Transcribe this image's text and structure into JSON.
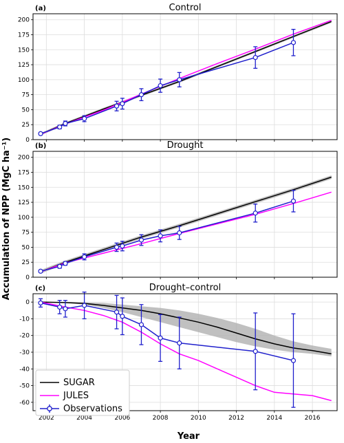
{
  "axes": {
    "ylabel": "Accumulation of NPP (MgC ha⁻¹)",
    "xlabel": "Year"
  },
  "legend": {
    "entries": [
      "SUGAR",
      "JULES",
      "Observations"
    ],
    "colors": [
      "#000000",
      "#ff00ff",
      "#1f1fcc"
    ]
  },
  "chart_data": [
    {
      "type": "line",
      "panel": "(a)",
      "title": "Control",
      "xlim": [
        2001.3,
        2017.3
      ],
      "ylim": [
        0,
        210
      ],
      "xticks": [
        2002,
        2004,
        2006,
        2008,
        2010,
        2012,
        2014,
        2016
      ],
      "yticks": [
        0,
        25,
        50,
        75,
        100,
        125,
        150,
        175,
        200
      ],
      "series": [
        {
          "name": "SUGAR",
          "color": "#000000",
          "x": [
            2001.7,
            2003,
            2005,
            2007,
            2009,
            2011,
            2013,
            2015,
            2017
          ],
          "y": [
            9,
            27,
            51,
            74,
            97,
            122,
            147,
            172,
            197
          ],
          "band": 2
        },
        {
          "name": "JULES",
          "color": "#ff00ff",
          "x": [
            2001.7,
            2003,
            2005,
            2007,
            2009,
            2011,
            2013,
            2015,
            2017
          ],
          "y": [
            9,
            26,
            49,
            76,
            102,
            127,
            151,
            176,
            199
          ]
        },
        {
          "name": "Observations",
          "color": "#1f1fcc",
          "x": [
            2001.7,
            2002.7,
            2003,
            2004,
            2005.7,
            2006,
            2007,
            2008,
            2009,
            2013,
            2015
          ],
          "y": [
            10,
            21,
            27,
            35,
            56,
            60,
            75,
            90,
            100,
            137,
            162
          ],
          "err": [
            2,
            3,
            4,
            5,
            8,
            9,
            10,
            11,
            12,
            18,
            22
          ]
        }
      ]
    },
    {
      "type": "line",
      "panel": "(b)",
      "title": "Drought",
      "xlim": [
        2001.3,
        2017.3
      ],
      "ylim": [
        0,
        210
      ],
      "xticks": [
        2002,
        2004,
        2006,
        2008,
        2010,
        2012,
        2014,
        2016
      ],
      "yticks": [
        0,
        25,
        50,
        75,
        100,
        125,
        150,
        175,
        200
      ],
      "series": [
        {
          "name": "SUGAR",
          "color": "#000000",
          "x": [
            2001.7,
            2003,
            2005,
            2007,
            2009,
            2011,
            2013,
            2015,
            2017
          ],
          "y": [
            9,
            25,
            46,
            67,
            86,
            106,
            126,
            146,
            167
          ],
          "band": 3
        },
        {
          "name": "JULES",
          "color": "#ff00ff",
          "x": [
            2001.7,
            2003,
            2005,
            2007,
            2009,
            2011,
            2013,
            2015,
            2017
          ],
          "y": [
            9,
            24,
            40,
            56,
            73,
            89,
            105,
            123,
            142
          ]
        },
        {
          "name": "Observations",
          "color": "#1f1fcc",
          "x": [
            2001.7,
            2002.7,
            2003,
            2004,
            2005.7,
            2006,
            2007,
            2008,
            2009,
            2013,
            2015
          ],
          "y": [
            10,
            18,
            23,
            34,
            50,
            52,
            62,
            69,
            74,
            107,
            127
          ],
          "err": [
            2,
            3,
            3,
            5,
            7,
            8,
            9,
            10,
            11,
            15,
            18
          ]
        }
      ]
    },
    {
      "type": "line",
      "panel": "(c)",
      "title": "Drought–control",
      "xlim": [
        2001.3,
        2017.3
      ],
      "ylim": [
        -65,
        5
      ],
      "xticks": [
        2002,
        2004,
        2006,
        2008,
        2010,
        2012,
        2014,
        2016
      ],
      "xticklabels": [
        "2002",
        "2004",
        "2006",
        "2008",
        "2010",
        "2012",
        "2014",
        "2016"
      ],
      "yticks": [
        0,
        -10,
        -20,
        -30,
        -40,
        -50,
        -60
      ],
      "series": [
        {
          "name": "SUGAR",
          "color": "#000000",
          "x": [
            2001.7,
            2003,
            2004,
            2005,
            2006,
            2007,
            2008,
            2009,
            2010,
            2011,
            2012,
            2013,
            2014,
            2015,
            2016,
            2017
          ],
          "y": [
            0,
            -0.3,
            -0.8,
            -2,
            -3.5,
            -5,
            -7,
            -9.5,
            -12,
            -15,
            -18.5,
            -22,
            -25,
            -27.5,
            -29,
            -31
          ],
          "band_lo": [
            0,
            -0.5,
            -1.5,
            -3.5,
            -6,
            -9,
            -12,
            -15,
            -18,
            -21,
            -24,
            -26.5,
            -28.5,
            -30,
            -31,
            -32.5
          ],
          "band_hi": [
            0,
            0,
            -0.2,
            -0.5,
            -1.5,
            -2.5,
            -3.5,
            -5,
            -7,
            -9.5,
            -12.5,
            -16,
            -20,
            -23.5,
            -26,
            -28
          ]
        },
        {
          "name": "JULES",
          "color": "#ff00ff",
          "x": [
            2001.7,
            2003,
            2004,
            2005,
            2006,
            2007,
            2008,
            2009,
            2010,
            2011,
            2012,
            2013,
            2014,
            2015,
            2016,
            2017
          ],
          "y": [
            0,
            -3,
            -5,
            -8,
            -12,
            -18,
            -25,
            -31,
            -35,
            -40,
            -45,
            -50,
            -54,
            -55,
            -56,
            -59
          ]
        },
        {
          "name": "Observations",
          "color": "#1f1fcc",
          "x": [
            2001.7,
            2002.7,
            2003,
            2004,
            2005.7,
            2006,
            2007,
            2008,
            2009,
            2013,
            2015
          ],
          "y": [
            -0.5,
            -3,
            -4,
            -2,
            -6,
            -8.5,
            -13.5,
            -21.5,
            -24.5,
            -29.5,
            -35
          ],
          "err": [
            2.5,
            4,
            5,
            8,
            10,
            11,
            12,
            14,
            15.5,
            23,
            28
          ]
        }
      ]
    }
  ]
}
